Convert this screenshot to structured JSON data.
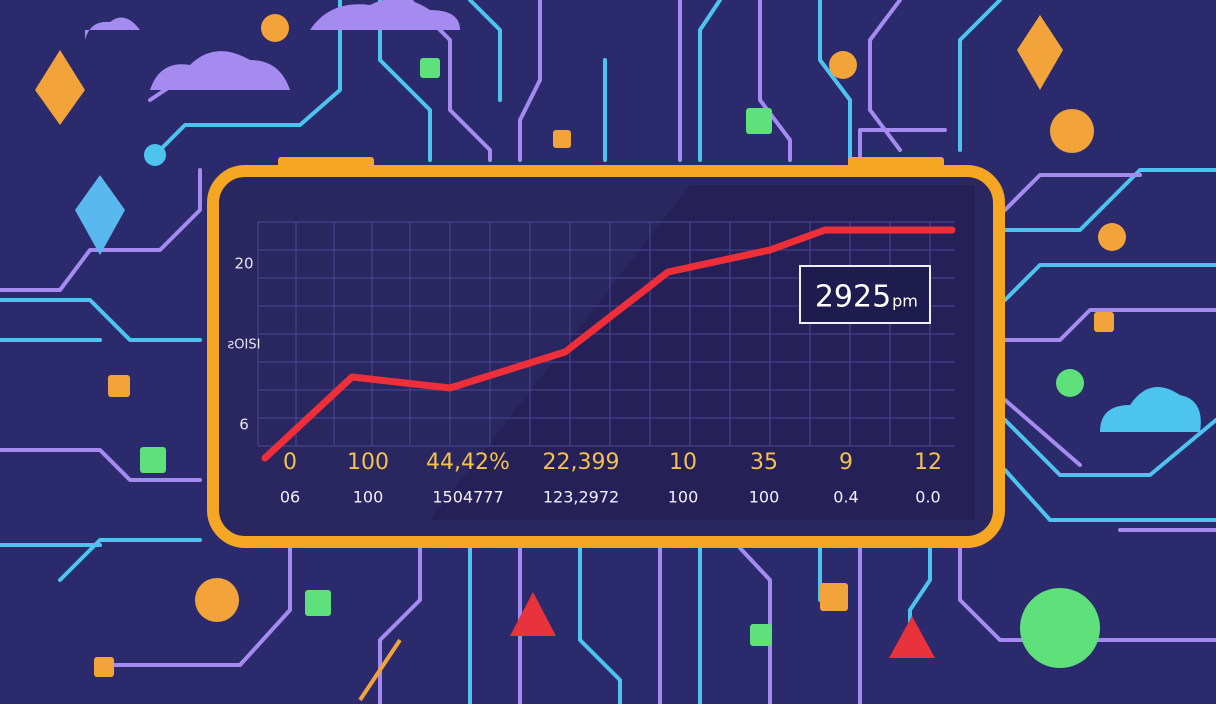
{
  "chart": {
    "y_labels": [
      "20",
      "ƨOISI",
      "6"
    ],
    "callout": {
      "value": "2925",
      "unit": "pm"
    },
    "rows": [
      [
        "0",
        "100",
        "44,42%",
        "22,399",
        "10",
        "35",
        "9",
        "12"
      ],
      [
        "06",
        "100",
        "1504777",
        "123,2972",
        "100",
        "100",
        "0.4",
        "0.0"
      ]
    ]
  }
}
